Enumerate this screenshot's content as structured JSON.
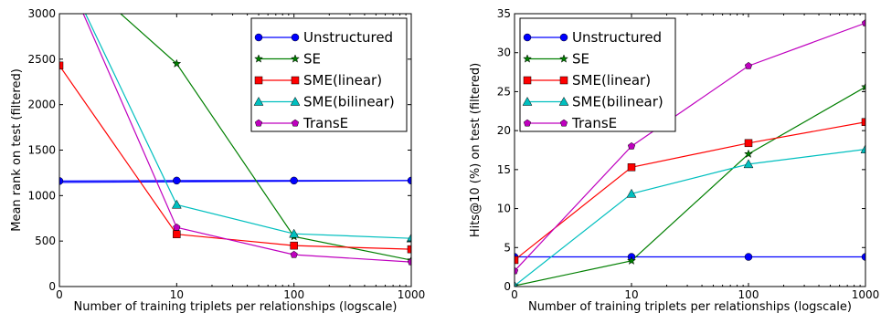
{
  "chart_data": [
    {
      "type": "line",
      "xscale": "symlog",
      "x": [
        0,
        10,
        100,
        1000
      ],
      "xticks": [
        "0",
        "10",
        "100",
        "1000"
      ],
      "xlabel": "Number of training triplets per relationships (logscale)",
      "ylabel": "Mean rank on test (filtered)",
      "ylim": [
        0,
        3000
      ],
      "yticks": [
        "0",
        "500",
        "1000",
        "1500",
        "2000",
        "2500",
        "3000"
      ],
      "legend_position": "top-right",
      "grid": false,
      "series": [
        {
          "name": "Unstructured",
          "color": "#0000ff",
          "marker": "circle",
          "values": [
            1160,
            1165,
            1165,
            1165
          ]
        },
        {
          "name": "SE",
          "color": "#007f00",
          "marker": "star",
          "values": [
            3600,
            2450,
            550,
            290
          ]
        },
        {
          "name": "SME(linear)",
          "color": "#ff0000",
          "marker": "square",
          "values": [
            2430,
            575,
            450,
            410
          ]
        },
        {
          "name": "SME(bilinear)",
          "color": "#00bfbf",
          "marker": "triangle",
          "values": [
            3600,
            900,
            580,
            530
          ]
        },
        {
          "name": "TransE",
          "color": "#bf00bf",
          "marker": "pentagon",
          "values": [
            3600,
            650,
            350,
            270
          ]
        }
      ],
      "extra_lines": [
        {
          "series": "Unstructured",
          "color": "#0000ff",
          "x": [
            0,
            1000
          ],
          "values": [
            1145,
            1165
          ]
        }
      ]
    },
    {
      "type": "line",
      "xscale": "symlog",
      "x": [
        0,
        10,
        100,
        1000
      ],
      "xticks": [
        "0",
        "10",
        "100",
        "1000"
      ],
      "xlabel": "Number of training triplets per relationships (logscale)",
      "ylabel": "Hits@10 (%) on test (filtered)",
      "ylim": [
        0,
        35
      ],
      "yticks": [
        "0",
        "5",
        "10",
        "15",
        "20",
        "25",
        "30",
        "35"
      ],
      "legend_position": "top-left",
      "grid": false,
      "series": [
        {
          "name": "Unstructured",
          "color": "#0000ff",
          "marker": "circle",
          "values": [
            3.8,
            3.8,
            3.8,
            3.8
          ]
        },
        {
          "name": "SE",
          "color": "#007f00",
          "marker": "star",
          "values": [
            0.1,
            3.3,
            17.0,
            25.6
          ]
        },
        {
          "name": "SME(linear)",
          "color": "#ff0000",
          "marker": "square",
          "values": [
            3.4,
            15.3,
            18.4,
            21.1
          ]
        },
        {
          "name": "SME(bilinear)",
          "color": "#00bfbf",
          "marker": "triangle",
          "values": [
            0.1,
            11.9,
            15.7,
            17.6
          ]
        },
        {
          "name": "TransE",
          "color": "#bf00bf",
          "marker": "pentagon",
          "values": [
            2.0,
            18.0,
            28.3,
            33.8
          ]
        }
      ]
    }
  ]
}
